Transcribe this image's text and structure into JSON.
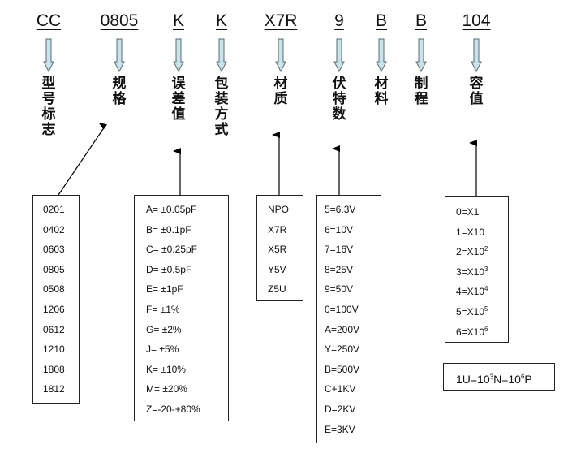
{
  "codes": [
    {
      "code": "CC",
      "label": "型号标志"
    },
    {
      "code": "0805",
      "label": "规格"
    },
    {
      "code": "K",
      "label": "误差值"
    },
    {
      "code": "K",
      "label": "包装方式"
    },
    {
      "code": "X7R",
      "label": "材质"
    },
    {
      "code": "9",
      "label": "伏特数"
    },
    {
      "code": "B",
      "label": "材料"
    },
    {
      "code": "B",
      "label": "制程"
    },
    {
      "code": "104",
      "label": "容值"
    }
  ],
  "sizes": [
    "0201",
    "0402",
    "0603",
    "0805",
    "0508",
    "1206",
    "0612",
    "1210",
    "1808",
    "1812"
  ],
  "tolerances": [
    "A= ±0.05pF",
    "B= ±0.1pF",
    "C= ±0.25pF",
    "D= ±0.5pF",
    "E= ±1pF",
    "F= ±1%",
    "G= ±2%",
    "J= ±5%",
    "K= ±10%",
    "M= ±20%",
    "Z=-20-+80%"
  ],
  "materials": [
    "NPO",
    "X7R",
    "X5R",
    "Y5V",
    "Z5U"
  ],
  "voltages": [
    "5=6.3V",
    "6=10V",
    "7=16V",
    "8=25V",
    "9=50V",
    "0=100V",
    "A=200V",
    "Y=250V",
    "B=500V",
    "C+1KV",
    "D=2KV",
    "E=3KV"
  ],
  "multipliers": [
    {
      "base": "0=X1",
      "exp": ""
    },
    {
      "base": "1=X10",
      "exp": ""
    },
    {
      "base": "2=X10",
      "exp": "2"
    },
    {
      "base": "3=X10",
      "exp": "3"
    },
    {
      "base": "4=X10",
      "exp": "4"
    },
    {
      "base": "5=X10",
      "exp": "5"
    },
    {
      "base": "6=X10",
      "exp": "6"
    }
  ],
  "unit_note": {
    "a": "1U=10",
    "e1": "3",
    "b": "N=10",
    "e2": "6",
    "c": "P"
  },
  "colors": {
    "arrow_fill": "#c8e4ea",
    "arrow_stroke": "#5a6a70"
  }
}
